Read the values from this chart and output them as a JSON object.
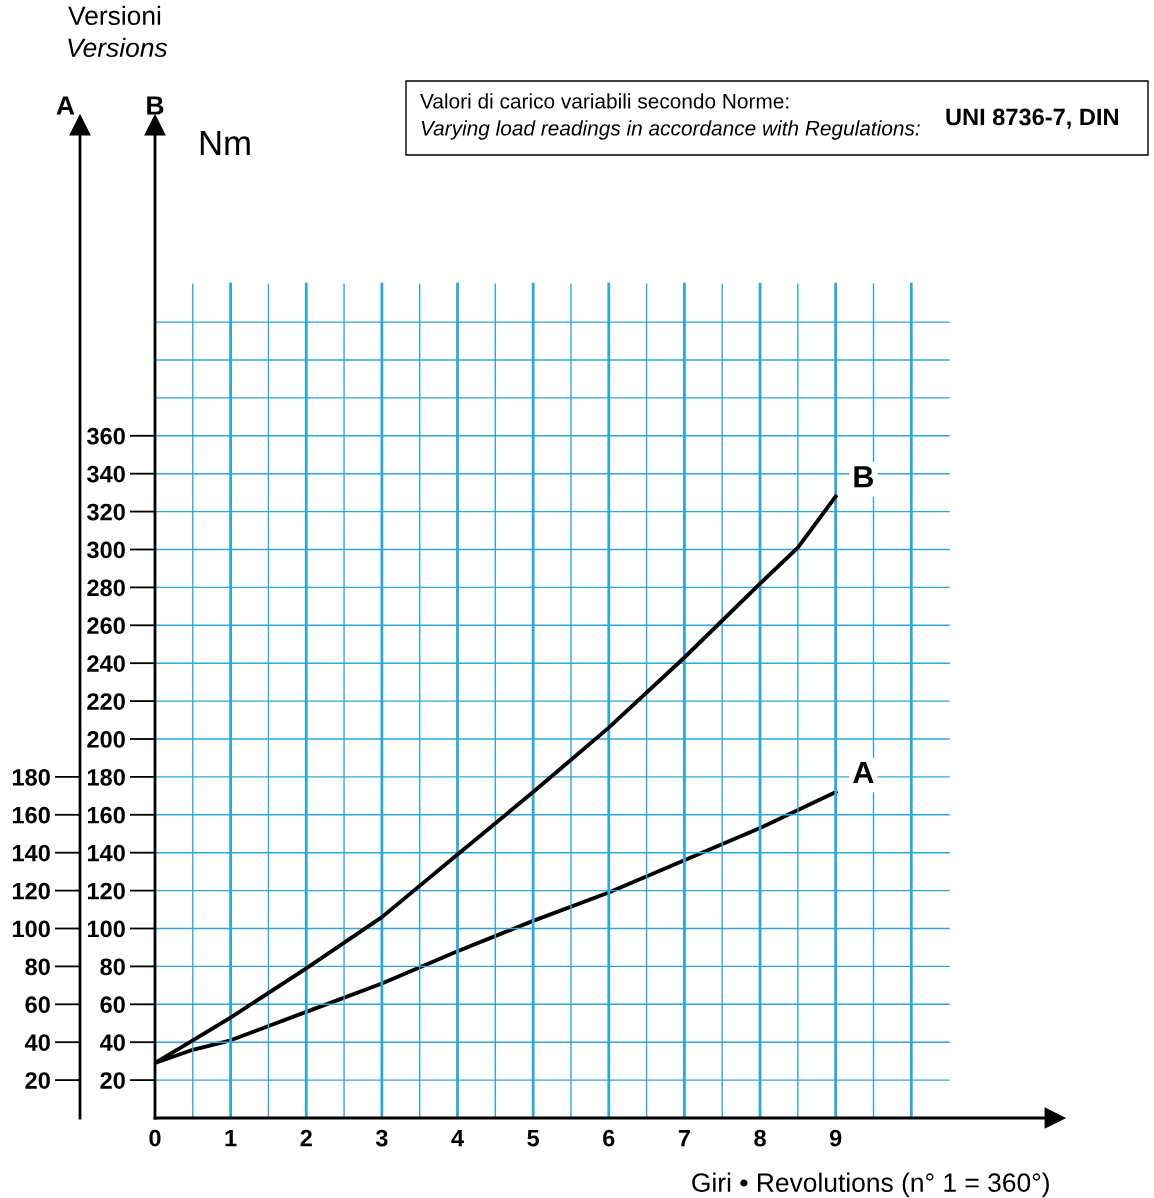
{
  "chart_data": {
    "type": "line",
    "xlabel": "Giri • Revolutions (n° 1 = 360°)",
    "ylabel": "B",
    "y2label": "A",
    "annotations": [
      "Versioni",
      "Versions",
      "Nm",
      "Valori di carico variabili secondo Norme:",
      "Varying load readings in accordance with Regulations:",
      "UNI 8736-7, DIN"
    ],
    "xlim": [
      0,
      11.9
    ],
    "xticks": [
      0,
      1,
      2,
      3,
      4,
      5,
      6,
      7,
      8,
      9
    ],
    "ylim": [
      0,
      524
    ],
    "yticks": [
      20,
      40,
      60,
      80,
      100,
      120,
      140,
      160,
      180,
      200,
      220,
      240,
      260,
      280,
      300,
      320,
      340,
      360
    ],
    "y2lim": [
      0,
      524
    ],
    "y2ticks": [
      20,
      40,
      60,
      80,
      100,
      120,
      140,
      160,
      180
    ],
    "grid": true,
    "legend": false,
    "line_style": "solid",
    "series": [
      {
        "name": "B",
        "color": "#000000",
        "x": [
          0,
          0.5,
          1,
          2,
          3,
          4,
          5,
          6,
          7,
          8,
          8.5,
          9
        ],
        "values": [
          29,
          41,
          53,
          79,
          106,
          139,
          172,
          206,
          243,
          282,
          301,
          328
        ]
      },
      {
        "name": "A",
        "color": "#000000",
        "axis": "y2",
        "x": [
          0,
          0.5,
          1,
          2,
          3,
          4,
          5,
          6,
          7,
          8,
          9
        ],
        "values": [
          29,
          36,
          41,
          56,
          71,
          88,
          104,
          119,
          136,
          153,
          172
        ]
      }
    ]
  }
}
